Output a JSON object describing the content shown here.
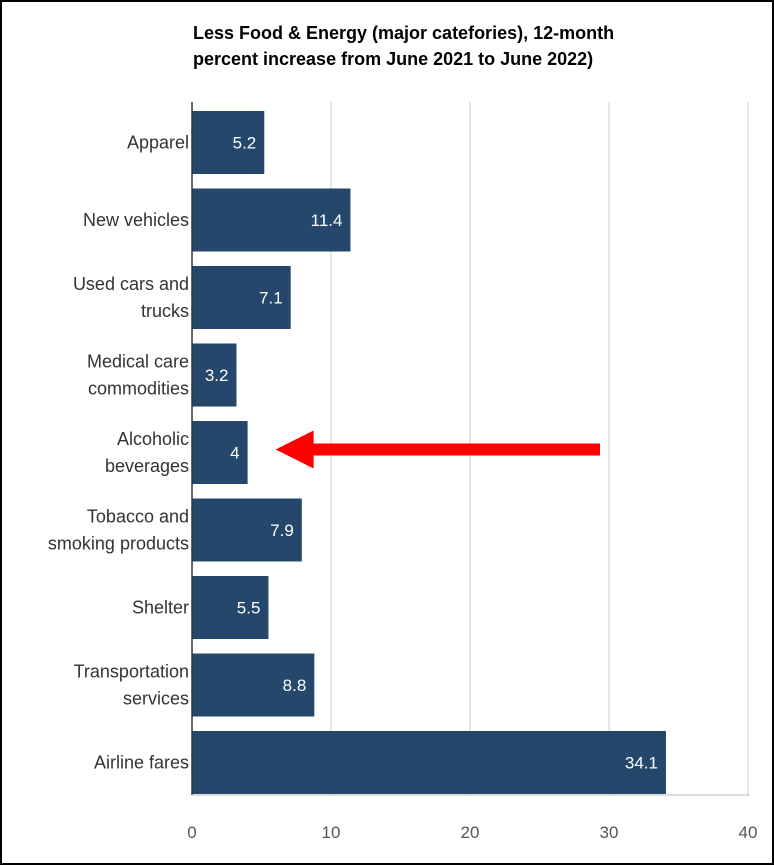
{
  "chart_data": {
    "type": "bar",
    "orientation": "horizontal",
    "title_lines": [
      "Less Food & Energy (major catefories), 12-month",
      "percent increase from June 2021 to June 2022)"
    ],
    "categories": [
      [
        "Apparel"
      ],
      [
        "New vehicles"
      ],
      [
        "Used cars and",
        "trucks"
      ],
      [
        "Medical care",
        "commodities"
      ],
      [
        "Alcoholic",
        "beverages"
      ],
      [
        "Tobacco and",
        "smoking products"
      ],
      [
        "Shelter"
      ],
      [
        "Transportation",
        "services"
      ],
      [
        "Airline fares"
      ]
    ],
    "values": [
      5.2,
      11.4,
      7.1,
      3.2,
      4,
      7.9,
      5.5,
      8.8,
      34.1
    ],
    "data_labels": [
      "5.2",
      "11.4",
      "7.1",
      "3.2",
      "4",
      "7.9",
      "5.5",
      "8.8",
      "34.1"
    ],
    "xlim": [
      0,
      40
    ],
    "x_ticks": [
      0,
      10,
      20,
      30,
      40
    ],
    "grid": "vertical",
    "legend": "none",
    "bar_color": "#24476b",
    "label_color": "#ffffff",
    "grid_color": "#cccccc",
    "annotation": {
      "type": "arrow",
      "color": "#ff0000",
      "points_to": "Alcoholic beverages",
      "from_x": 30,
      "to_x": 5.8
    }
  }
}
